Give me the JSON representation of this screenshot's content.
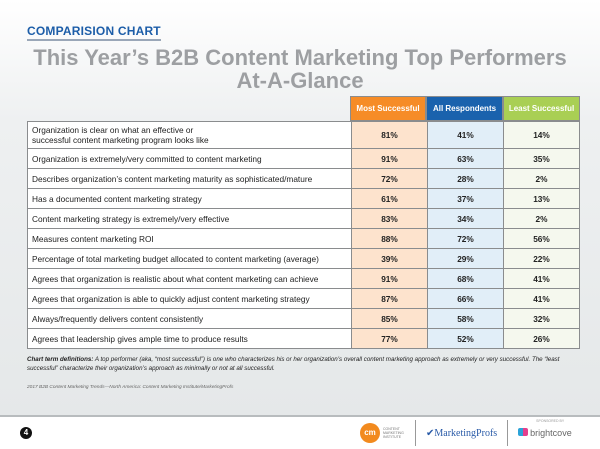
{
  "kicker": "COMPARISION CHART",
  "title_line1": "This Year’s B2B Content Marketing Top Performers",
  "title_line2": "At-A-Glance",
  "columns": [
    {
      "label": "Most Successful",
      "color": "#f68c27"
    },
    {
      "label": "All Respondents",
      "color": "#1a62ad"
    },
    {
      "label": "Least Successful",
      "color": "#a9cf54"
    }
  ],
  "rows": [
    {
      "label": "Organization is clear on what an effective or",
      "label2": "successful content marketing program looks like",
      "values": [
        "81%",
        "41%",
        "14%"
      ]
    },
    {
      "label": "Organization is extremely/very committed to content marketing",
      "values": [
        "91%",
        "63%",
        "35%"
      ]
    },
    {
      "label": "Describes organization’s content marketing maturity as sophisticated/mature",
      "values": [
        "72%",
        "28%",
        "2%"
      ]
    },
    {
      "label": "Has a documented content marketing strategy",
      "values": [
        "61%",
        "37%",
        "13%"
      ]
    },
    {
      "label": "Content marketing strategy is extremely/very effective",
      "values": [
        "83%",
        "34%",
        "2%"
      ]
    },
    {
      "label": "Measures content marketing ROI",
      "values": [
        "88%",
        "72%",
        "56%"
      ]
    },
    {
      "label": "Percentage of total marketing budget allocated to content marketing (average)",
      "values": [
        "39%",
        "29%",
        "22%"
      ]
    },
    {
      "label": "Agrees that organization is realistic about what content marketing can achieve",
      "values": [
        "91%",
        "68%",
        "41%"
      ]
    },
    {
      "label": "Agrees that organization is able to quickly adjust content marketing strategy",
      "values": [
        "87%",
        "66%",
        "41%"
      ]
    },
    {
      "label": "Always/frequently delivers content consistently",
      "values": [
        "85%",
        "58%",
        "32%"
      ]
    },
    {
      "label": "Agrees that leadership gives ample time to produce results",
      "values": [
        "77%",
        "52%",
        "26%"
      ]
    }
  ],
  "definitions_bold": "Chart term definitions:",
  "definitions_text": " A top performer (aka, “most successful”) is one who characterizes his or her organization’s overall content marketing approach as extremely or very successful. The “least successful” characterize their organization’s approach as minimally or not at all successful.",
  "source": "2017 B2B Content Marketing Trends—North America: Content Marketing Institute/MarketingProfs",
  "page_number": "4",
  "logos": {
    "cmi_mark": "cm",
    "cmi_text": "CONTENT MARKETING INSTITUTE",
    "marketingprofs": "MarketingProfs",
    "sponsored_by": "SPONSORED BY",
    "brightcove": "brightcove"
  }
}
